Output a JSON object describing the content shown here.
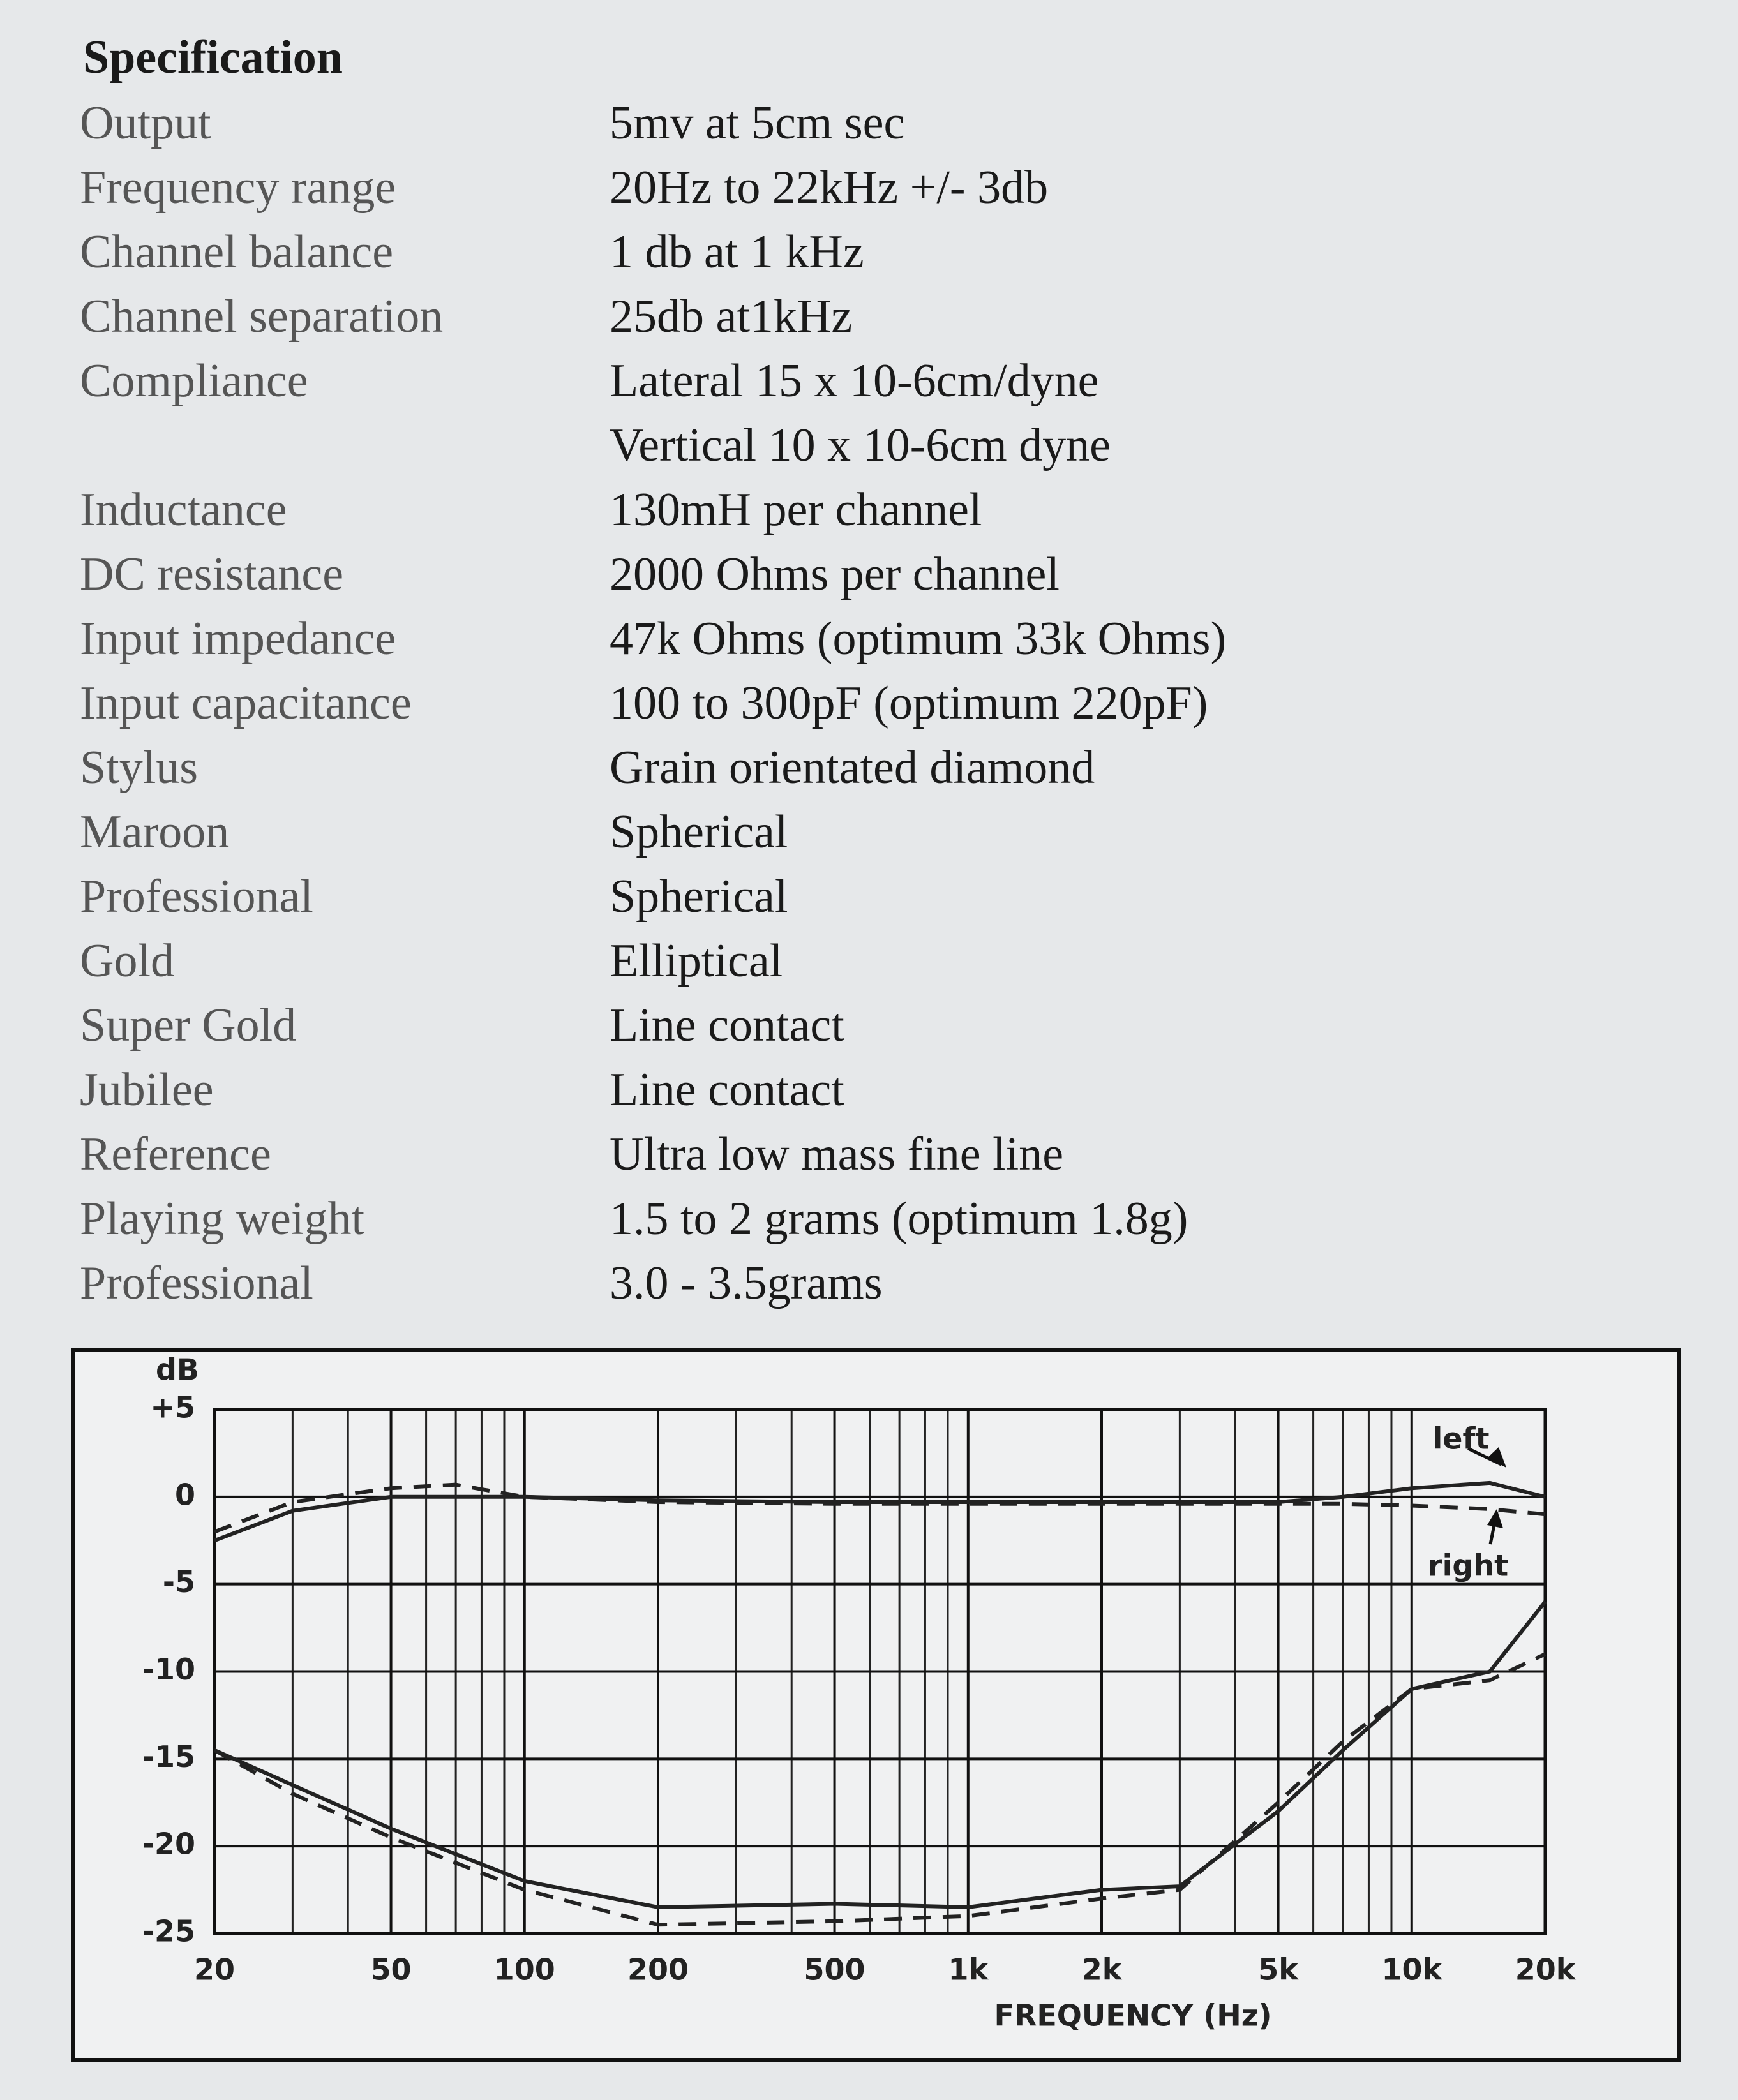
{
  "specification": {
    "title": "Specification",
    "rows": [
      {
        "label": "Output",
        "value": "5mv at 5cm sec"
      },
      {
        "label": "Frequency range",
        "value": "20Hz to 22kHz +/- 3db"
      },
      {
        "label": "Channel balance",
        "value": "1 db at 1 kHz"
      },
      {
        "label": "Channel separation",
        "value": "25db at1kHz"
      },
      {
        "label": "Compliance",
        "values": [
          "Lateral 15 x 10-6cm/dyne",
          "Vertical 10 x 10-6cm dyne"
        ]
      },
      {
        "label": "Inductance",
        "value": "130mH per channel"
      },
      {
        "label": "DC resistance",
        "value": "2000 Ohms per channel"
      },
      {
        "label": "Input impedance",
        "value": "47k Ohms (optimum 33k Ohms)"
      },
      {
        "label": "Input capacitance",
        "value": "100 to 300pF (optimum 220pF)"
      },
      {
        "label": "Stylus",
        "value": "Grain orientated diamond"
      },
      {
        "label": "Maroon",
        "value": "Spherical"
      },
      {
        "label": "Professional",
        "value": "Spherical"
      },
      {
        "label": "Gold",
        "value": "Elliptical"
      },
      {
        "label": "Super Gold",
        "value": "Line contact"
      },
      {
        "label": "Jubilee",
        "value": "Line contact"
      },
      {
        "label": "Reference",
        "value": "Ultra low mass fine line"
      },
      {
        "label": "Playing weight",
        "value": "1.5 to 2 grams (optimum 1.8g)"
      },
      {
        "label": "Professional",
        "value": "3.0 - 3.5grams"
      }
    ]
  },
  "chart_data": {
    "type": "line",
    "y_label": "dB",
    "x_label": "FREQUENCY (Hz)",
    "x_scale": "log",
    "grid": true,
    "xlim": [
      20,
      20000
    ],
    "ylim": [
      -25,
      5
    ],
    "xticks": [
      20,
      50,
      100,
      200,
      500,
      {
        "value": 1000,
        "label": "1k"
      },
      {
        "value": 2000,
        "label": "2k"
      },
      {
        "value": 5000,
        "label": "5k"
      },
      {
        "value": 10000,
        "label": "10k"
      },
      {
        "value": 20000,
        "label": "20k"
      }
    ],
    "yticks": [
      {
        "value": 5,
        "label": "+5"
      },
      0,
      -5,
      -10,
      -15,
      -20,
      -25
    ],
    "annotations": [
      "left",
      "right"
    ],
    "series": [
      {
        "name": "left",
        "color": "#222222",
        "linestyle": "solid",
        "x": [
          20,
          30,
          50,
          70,
          100,
          200,
          500,
          1000,
          2000,
          5000,
          7000,
          10000,
          15000,
          20000
        ],
        "values": [
          -2.5,
          -0.8,
          0,
          0,
          0,
          -0.2,
          -0.3,
          -0.3,
          -0.3,
          -0.3,
          0,
          0.5,
          0.8,
          0
        ]
      },
      {
        "name": "right",
        "color": "#222222",
        "linestyle": "dashed",
        "x": [
          20,
          30,
          50,
          70,
          100,
          200,
          500,
          1000,
          2000,
          5000,
          7000,
          10000,
          15000,
          20000
        ],
        "values": [
          -2,
          -0.3,
          0.5,
          0.7,
          0,
          -0.3,
          -0.4,
          -0.4,
          -0.4,
          -0.4,
          -0.4,
          -0.5,
          -0.7,
          -1
        ]
      },
      {
        "color": "#222222",
        "linestyle": "solid",
        "x": [
          20,
          30,
          50,
          100,
          200,
          500,
          1000,
          2000,
          3000,
          5000,
          7000,
          10000,
          15000,
          20000
        ],
        "values": [
          -14.5,
          -16.5,
          -19,
          -22,
          -23.5,
          -23.3,
          -23.5,
          -22.5,
          -22.3,
          -18,
          -14.5,
          -11,
          -10,
          -6
        ]
      },
      {
        "color": "#222222",
        "linestyle": "dashed",
        "x": [
          20,
          30,
          50,
          100,
          200,
          500,
          1000,
          2000,
          3000,
          5000,
          7000,
          10000,
          15000,
          20000
        ],
        "values": [
          -14.5,
          -17,
          -19.5,
          -22.5,
          -24.5,
          -24.3,
          -24,
          -23,
          -22.5,
          -17.5,
          -14,
          -11,
          -10.5,
          -9
        ]
      }
    ]
  }
}
